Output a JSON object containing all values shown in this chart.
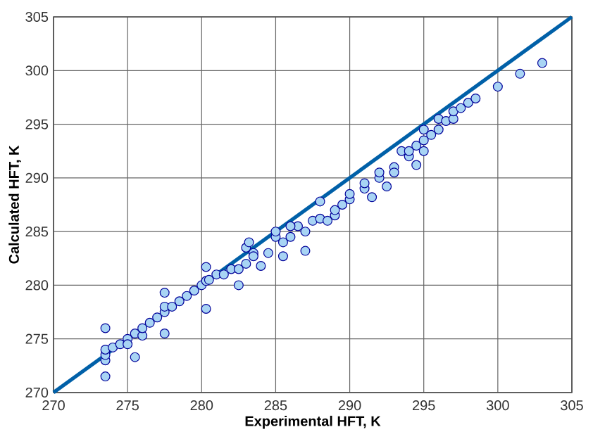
{
  "chart_data": {
    "type": "scatter",
    "xlabel": "Experimental HFT, K",
    "ylabel": "Calculated HFT, K",
    "xlim": [
      270,
      305
    ],
    "ylim": [
      270,
      305
    ],
    "xticks": [
      270,
      275,
      280,
      285,
      290,
      295,
      300,
      305
    ],
    "yticks": [
      270,
      275,
      280,
      285,
      290,
      295,
      300,
      305
    ],
    "grid": true,
    "series": [
      {
        "type": "line",
        "marker": "none",
        "color": "#0060a8",
        "x": [
          270,
          305
        ],
        "values": [
          270,
          305
        ]
      },
      {
        "marker": "circle",
        "color": "#a8d4f4",
        "x": [
          273.5,
          273.5,
          273.5,
          273.5,
          273.5,
          274,
          274.5,
          275,
          275,
          275.5,
          275.5,
          276,
          276,
          276.5,
          277,
          277.5,
          277.5,
          277.5,
          277.5,
          278,
          278.5,
          279,
          279.5,
          280,
          280.3,
          280.3,
          280.3,
          280.5,
          281,
          281.5,
          282,
          282.5,
          282.5,
          283,
          283,
          283.2,
          283.5,
          284,
          284.5,
          285,
          285,
          285.5,
          285.5,
          286,
          286.5,
          287,
          287,
          287.5,
          288,
          288,
          288.5,
          289,
          289,
          289.5,
          290,
          290,
          291,
          291,
          291.5,
          292,
          292,
          292.5,
          293,
          293,
          293.5,
          294,
          294,
          294.5,
          294.5,
          295,
          295,
          295,
          295.5,
          296,
          296,
          296.5,
          297,
          297,
          297.5,
          298,
          298.5,
          300,
          301.5,
          303,
          283.5,
          286
        ],
        "values": [
          271.5,
          273,
          273.5,
          274,
          276,
          274.2,
          274.5,
          275,
          274.5,
          275.5,
          273.3,
          275.3,
          276,
          276.5,
          277,
          275.5,
          277.5,
          278,
          279.3,
          278,
          278.5,
          279,
          279.5,
          280,
          281.7,
          280.4,
          277.8,
          280.5,
          281,
          281,
          281.5,
          281.5,
          280,
          283.5,
          282,
          284,
          283,
          281.8,
          283,
          284.5,
          285,
          284,
          282.7,
          284.5,
          285.5,
          285,
          283.2,
          286,
          286.2,
          287.8,
          286,
          286.5,
          287,
          287.5,
          288,
          288.5,
          289,
          289.5,
          288.2,
          290,
          290.5,
          289.2,
          291,
          290.5,
          292.5,
          292,
          292.5,
          293,
          291.2,
          293.5,
          294.5,
          292.5,
          294,
          294.5,
          295.5,
          295.3,
          295.5,
          296.2,
          296.5,
          297,
          297.4,
          298.5,
          299.7,
          300.7,
          282.7,
          285.5
        ]
      }
    ]
  }
}
